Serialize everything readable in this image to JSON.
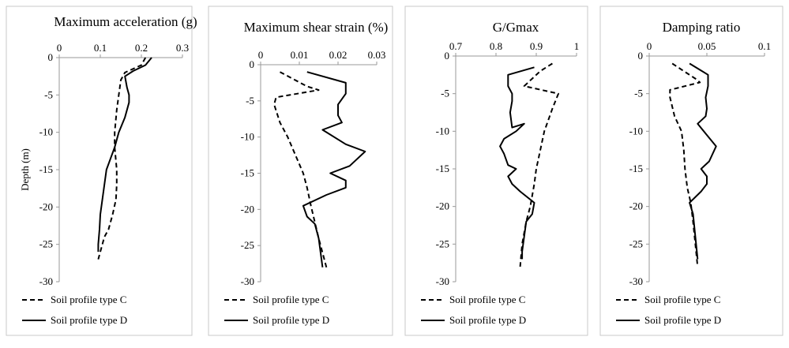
{
  "chart_data": [
    {
      "type": "line",
      "title": "Maximum acceleration  (g)",
      "xlabel": "",
      "ylabel": "Depth (m)",
      "xlim": [
        0,
        0.3
      ],
      "ylim": [
        -30,
        0
      ],
      "xticks": [
        "0",
        "0.1",
        "0.2",
        "0.3"
      ],
      "yticks": [
        "0",
        "-5",
        "-10",
        "-15",
        "-20",
        "-25",
        "-30"
      ],
      "series": [
        {
          "name": "Soil profile type C",
          "style": "dashed",
          "x": [
            0.21,
            0.2,
            0.16,
            0.15,
            0.145,
            0.14,
            0.135,
            0.135,
            0.14,
            0.14,
            0.138,
            0.13,
            0.12,
            0.11,
            0.1,
            0.095
          ],
          "y": [
            0,
            -1,
            -2,
            -3,
            -5,
            -7,
            -10,
            -12,
            -15,
            -17,
            -19,
            -21,
            -23,
            -24,
            -26,
            -27
          ]
        },
        {
          "name": "Soil profile type D",
          "style": "solid",
          "x": [
            0.225,
            0.21,
            0.18,
            0.16,
            0.165,
            0.17,
            0.17,
            0.16,
            0.145,
            0.135,
            0.125,
            0.115,
            0.11,
            0.105,
            0.1,
            0.098,
            0.095,
            0.095
          ],
          "y": [
            0,
            -1,
            -1.8,
            -2.5,
            -4,
            -5,
            -6,
            -8,
            -10,
            -12,
            -13.5,
            -15,
            -17,
            -19,
            -21,
            -23,
            -25,
            -26
          ]
        }
      ]
    },
    {
      "type": "line",
      "title": "Maximum shear strain (%)",
      "xlabel": "",
      "ylabel": "",
      "xlim": [
        0,
        0.03
      ],
      "ylim": [
        -30,
        0
      ],
      "xticks": [
        "0",
        "0.01",
        "0.02",
        "0.03"
      ],
      "yticks": [
        "0",
        "-5",
        "-10",
        "-15",
        "-20",
        "-25",
        "-30"
      ],
      "series": [
        {
          "name": "Soil profile type C",
          "style": "dashed",
          "x": [
            0.005,
            0.012,
            0.015,
            0.004,
            0.0035,
            0.005,
            0.007,
            0.009,
            0.011,
            0.012,
            0.013,
            0.015,
            0.017
          ],
          "y": [
            -1,
            -3,
            -3.5,
            -4.5,
            -5.5,
            -8,
            -10,
            -12.5,
            -15,
            -17,
            -19.5,
            -24,
            -28
          ]
        },
        {
          "name": "Soil profile type D",
          "style": "solid",
          "x": [
            0.012,
            0.022,
            0.022,
            0.02,
            0.02,
            0.021,
            0.016,
            0.022,
            0.027,
            0.023,
            0.018,
            0.022,
            0.022,
            0.017,
            0.011,
            0.012,
            0.014,
            0.015,
            0.016
          ],
          "y": [
            -1,
            -2.5,
            -4,
            -5.5,
            -7,
            -8,
            -9,
            -11,
            -12,
            -14,
            -15,
            -16,
            -17,
            -18,
            -19.5,
            -21,
            -22,
            -24,
            -28
          ]
        }
      ]
    },
    {
      "type": "line",
      "title": "G/Gmax",
      "xlabel": "",
      "ylabel": "",
      "xlim": [
        0.7,
        1
      ],
      "ylim": [
        -30,
        0
      ],
      "xticks": [
        "0.7",
        "0.8",
        "0.9",
        "1"
      ],
      "yticks": [
        "0",
        "-5",
        "-10",
        "-15",
        "-20",
        "-25",
        "-30"
      ],
      "series": [
        {
          "name": "Soil profile type C",
          "style": "dashed",
          "x": [
            0.94,
            0.91,
            0.89,
            0.87,
            0.955,
            0.94,
            0.92,
            0.91,
            0.9,
            0.895,
            0.885,
            0.875,
            0.865,
            0.86
          ],
          "y": [
            -1,
            -2,
            -3,
            -4,
            -5,
            -7,
            -10,
            -12.5,
            -15,
            -17,
            -20,
            -22,
            -25,
            -28
          ]
        },
        {
          "name": "Soil profile type D",
          "style": "solid",
          "x": [
            0.895,
            0.83,
            0.83,
            0.84,
            0.84,
            0.835,
            0.84,
            0.87,
            0.85,
            0.82,
            0.81,
            0.82,
            0.83,
            0.85,
            0.83,
            0.84,
            0.86,
            0.895,
            0.89,
            0.875,
            0.87,
            0.865,
            0.865
          ],
          "y": [
            -1.5,
            -2.5,
            -4,
            -5,
            -6,
            -7.5,
            -9.5,
            -9,
            -10,
            -11,
            -12,
            -13,
            -14.5,
            -15,
            -16,
            -17,
            -18,
            -19.5,
            -21,
            -22,
            -24,
            -26,
            -27
          ]
        }
      ]
    },
    {
      "type": "line",
      "title": "Damping ratio",
      "xlabel": "",
      "ylabel": "",
      "xlim": [
        0,
        0.1
      ],
      "ylim": [
        -30,
        0
      ],
      "xticks": [
        "0",
        "0.05",
        "0.1"
      ],
      "yticks": [
        "0",
        "-5",
        "-10",
        "-15",
        "-20",
        "-25",
        "-30"
      ],
      "series": [
        {
          "name": "Soil profile type C",
          "style": "dashed",
          "x": [
            0.02,
            0.03,
            0.04,
            0.044,
            0.018,
            0.018,
            0.022,
            0.028,
            0.03,
            0.031,
            0.033,
            0.036,
            0.038,
            0.04,
            0.042
          ],
          "y": [
            -1,
            -2,
            -3,
            -3.5,
            -4.5,
            -5.5,
            -8,
            -10,
            -12.5,
            -15,
            -17.5,
            -19.5,
            -22,
            -25,
            -28
          ]
        },
        {
          "name": "Soil profile type D",
          "style": "solid",
          "x": [
            0.035,
            0.051,
            0.051,
            0.049,
            0.05,
            0.049,
            0.042,
            0.05,
            0.058,
            0.052,
            0.045,
            0.05,
            0.05,
            0.045,
            0.035,
            0.038,
            0.04,
            0.042
          ],
          "y": [
            -1,
            -2.5,
            -4,
            -5.5,
            -7,
            -8,
            -9,
            -10.5,
            -12,
            -14,
            -15,
            -16,
            -17,
            -18,
            -19.5,
            -21,
            -24,
            -27
          ]
        }
      ]
    }
  ],
  "legend": {
    "type_c": "Soil profile type C",
    "type_d": "Soil profile type D"
  }
}
